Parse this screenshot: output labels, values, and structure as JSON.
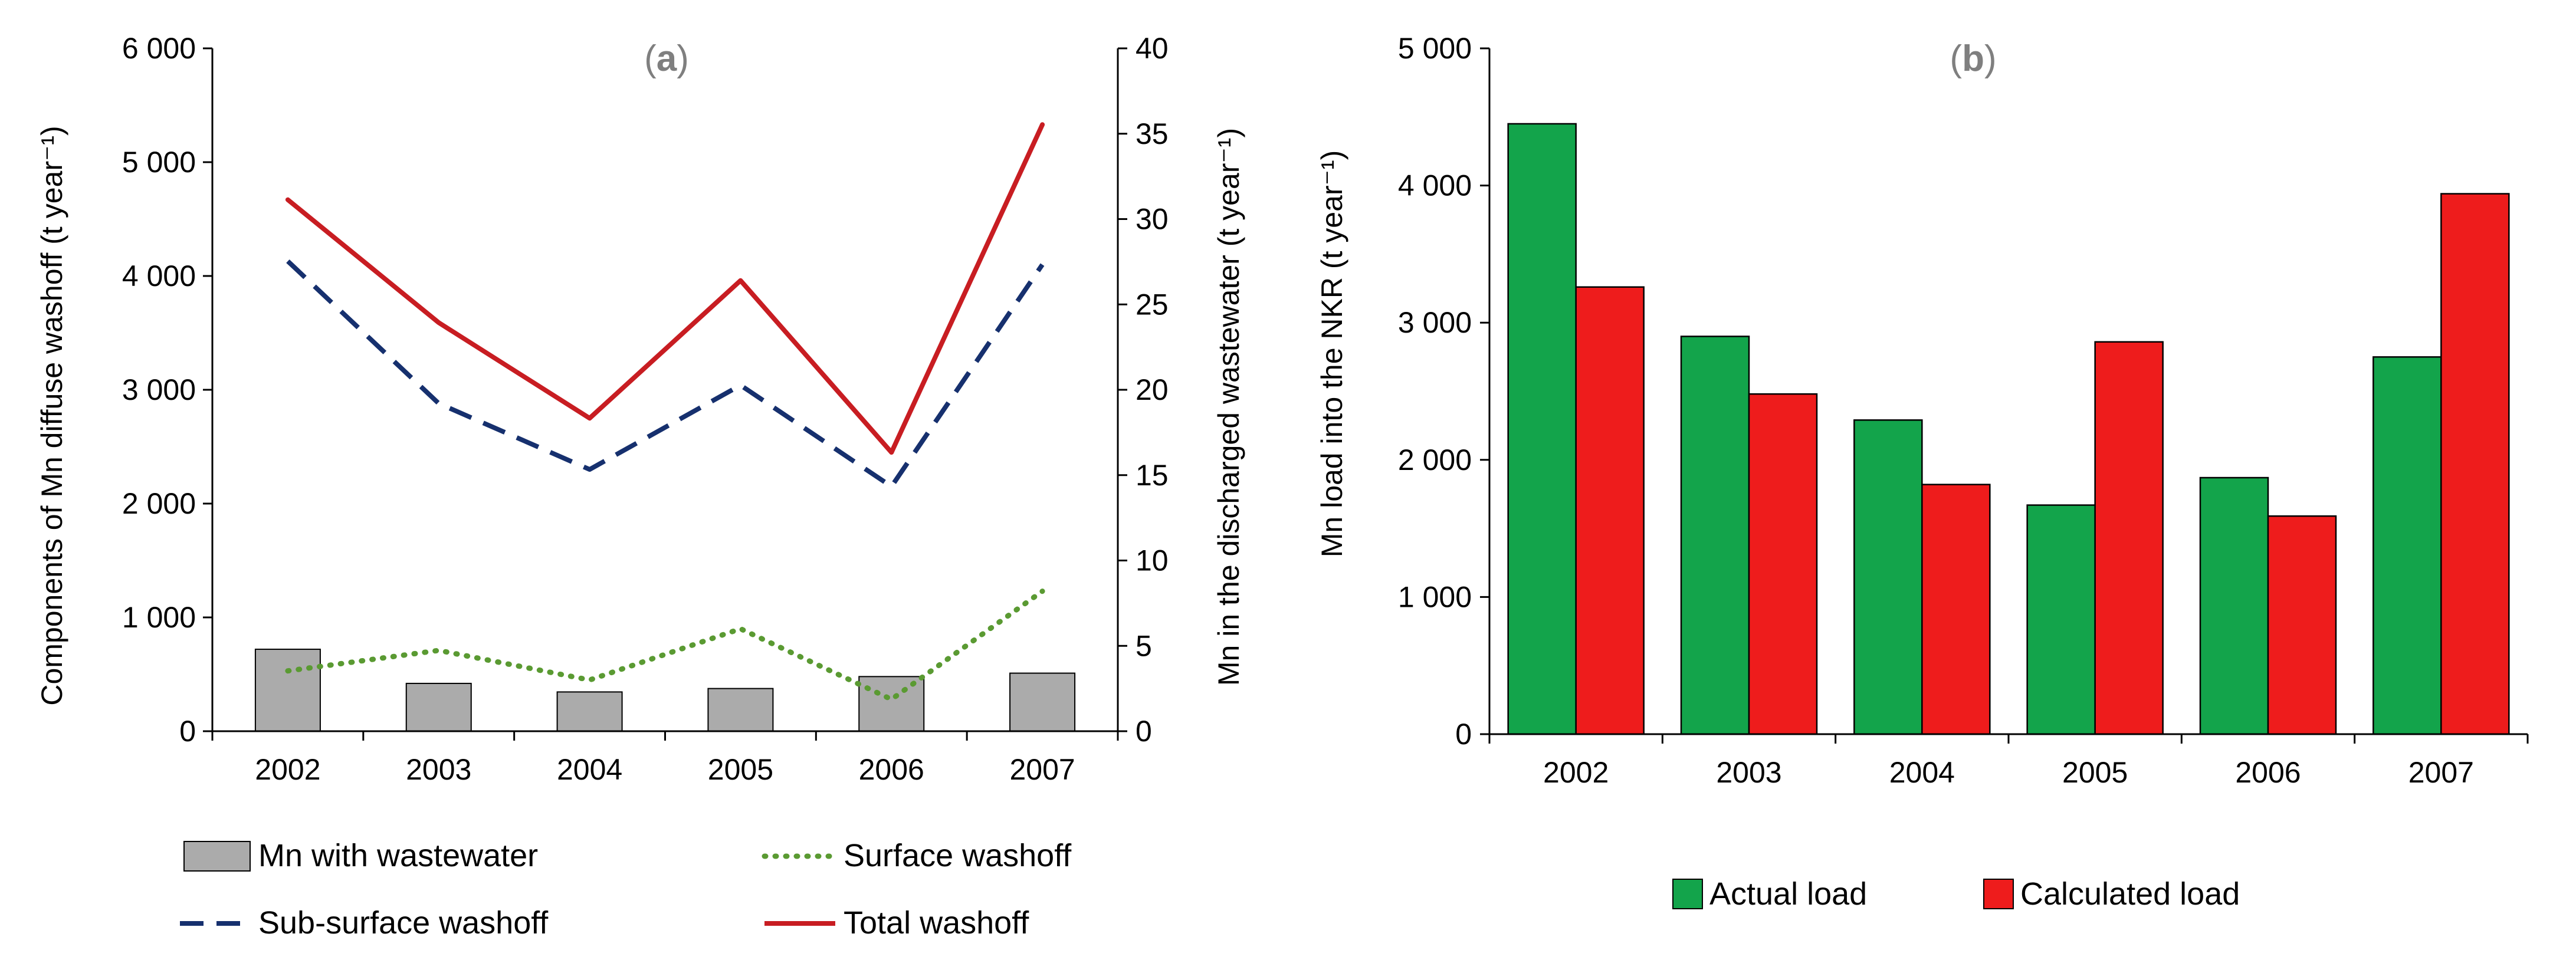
{
  "colors": {
    "wastewater_bar": "#ABABAB",
    "surface": "#5A9A32",
    "subsurface": "#16306E",
    "total": "#C81D22",
    "actual": "#13A44B",
    "calculated": "#EE1C1C",
    "axis": "#000000",
    "panel_label": "#7F7F7F"
  },
  "chart_data": [
    {
      "type": "bar+line",
      "panel_label": "(a)",
      "panel_letter": "a",
      "categories": [
        "2002",
        "2003",
        "2004",
        "2005",
        "2006",
        "2007"
      ],
      "ylabel_left": "Components of Mn diffuse washoff (t year⁻¹)",
      "ylabel_right": "Mn in the discharged wastewater (t year⁻¹)",
      "ylim_left": [
        0,
        6000
      ],
      "ylim_right": [
        0,
        40
      ],
      "left_ticks": [
        {
          "value": 0,
          "label": "0"
        },
        {
          "value": 1000,
          "label": "1 000"
        },
        {
          "value": 2000,
          "label": "2 000"
        },
        {
          "value": 3000,
          "label": "3 000"
        },
        {
          "value": 4000,
          "label": "4 000"
        },
        {
          "value": 5000,
          "label": "5 000"
        },
        {
          "value": 6000,
          "label": "6 000"
        }
      ],
      "right_ticks": [
        {
          "value": 0,
          "label": "0"
        },
        {
          "value": 5,
          "label": "5"
        },
        {
          "value": 10,
          "label": "10"
        },
        {
          "value": 15,
          "label": "15"
        },
        {
          "value": 20,
          "label": "20"
        },
        {
          "value": 25,
          "label": "25"
        },
        {
          "value": 30,
          "label": "30"
        },
        {
          "value": 35,
          "label": "35"
        },
        {
          "value": 40,
          "label": "40"
        }
      ],
      "series": [
        {
          "name": "Mn with wastewater",
          "kind": "bar",
          "axis": "right",
          "values": [
            4.8,
            2.8,
            2.3,
            2.5,
            3.2,
            3.4
          ]
        },
        {
          "name": "Surface washoff",
          "kind": "line-dotted",
          "axis": "left",
          "values": [
            530,
            710,
            450,
            900,
            280,
            1230
          ]
        },
        {
          "name": "Sub-surface washoff",
          "kind": "line-dashed",
          "axis": "left",
          "values": [
            4130,
            2880,
            2300,
            3040,
            2150,
            4100
          ]
        },
        {
          "name": "Total washoff",
          "kind": "line-solid",
          "axis": "left",
          "values": [
            4670,
            3590,
            2750,
            3960,
            2450,
            5330
          ]
        }
      ],
      "legend": [
        {
          "name": "Mn with wastewater"
        },
        {
          "name": "Surface washoff"
        },
        {
          "name": "Sub-surface washoff"
        },
        {
          "name": "Total washoff"
        }
      ]
    },
    {
      "type": "bar",
      "panel_label": "(b)",
      "panel_letter": "b",
      "categories": [
        "2002",
        "2003",
        "2004",
        "2005",
        "2006",
        "2007"
      ],
      "ylabel": "Mn load into the NKR (t year⁻¹)",
      "ylim": [
        0,
        5000
      ],
      "y_ticks": [
        {
          "value": 0,
          "label": "0"
        },
        {
          "value": 1000,
          "label": "1 000"
        },
        {
          "value": 2000,
          "label": "2 000"
        },
        {
          "value": 3000,
          "label": "3 000"
        },
        {
          "value": 4000,
          "label": "4 000"
        },
        {
          "value": 5000,
          "label": "5 000"
        }
      ],
      "series": [
        {
          "name": "Actual load",
          "values": [
            4450,
            2900,
            2290,
            1670,
            1870,
            2750
          ]
        },
        {
          "name": "Calculated load",
          "values": [
            3260,
            2480,
            1820,
            2860,
            1590,
            3940
          ]
        }
      ],
      "legend": [
        {
          "name": "Actual load"
        },
        {
          "name": "Calculated load"
        }
      ]
    }
  ]
}
